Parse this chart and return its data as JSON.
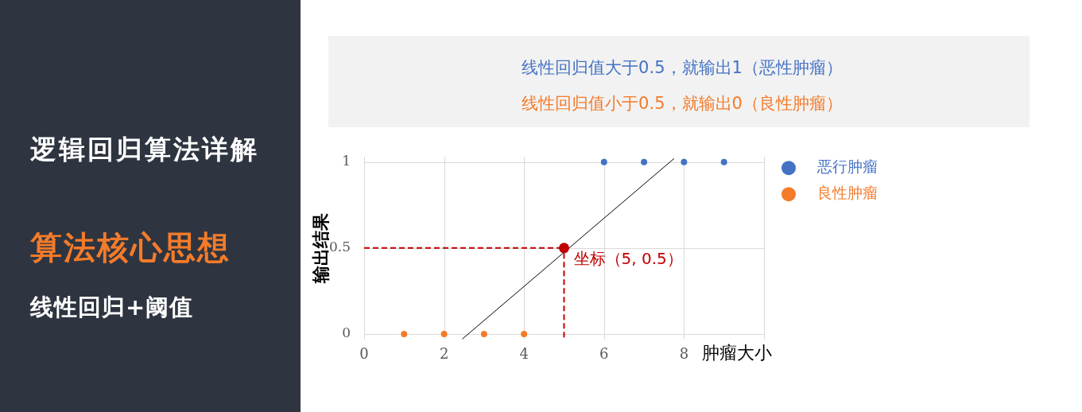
{
  "chart_data": {
    "type": "scatter",
    "xlabel": "肿瘤大小",
    "ylabel": "输出结果",
    "annotations": [
      "逻辑回归算法详解",
      "算法核心思想",
      "线性回归+阈值",
      "线性回归值大于0.5，就输出1（恶性肿瘤）",
      "线性回归值小于0.5，就输出0（良性肿瘤）",
      {
        "text": "坐标（5, 0.5）",
        "x": 5,
        "y": 0.5
      }
    ],
    "series": [
      {
        "name": "恶行肿瘤",
        "color": "#4472c4",
        "x": [
          6,
          7,
          8,
          9
        ],
        "values": [
          1,
          1,
          1,
          1
        ]
      },
      {
        "name": "良性肿瘤",
        "color": "#f47b2a",
        "x": [
          1,
          2,
          3,
          4
        ],
        "values": [
          0,
          0,
          0,
          0
        ]
      },
      {
        "type": "line",
        "color": "#000000",
        "x": [
          2.45,
          7.75
        ],
        "values": [
          -0.03,
          1.02
        ],
        "marker": "none"
      },
      {
        "type": "line",
        "color": "#c00000",
        "x": [
          0,
          5
        ],
        "values": [
          0.5,
          0.5
        ],
        "marker": "none",
        "line_style": "dashed"
      },
      {
        "type": "line",
        "color": "#c00000",
        "x": [
          5,
          5
        ],
        "values": [
          -0.02,
          0.5
        ],
        "marker": "none",
        "line_style": "dashed"
      },
      {
        "color": "#c00000",
        "x": [
          5
        ],
        "values": [
          0.5
        ]
      }
    ],
    "xlim": [
      0,
      10
    ],
    "xticks": [
      0,
      2,
      4,
      6,
      8,
      {
        "value": 10,
        "label": null
      }
    ],
    "ylim": [
      -0.03,
      1.03
    ],
    "yticks": [
      0,
      0.5,
      1
    ],
    "grid": true,
    "legend": "top right",
    "marker": "circle"
  }
}
